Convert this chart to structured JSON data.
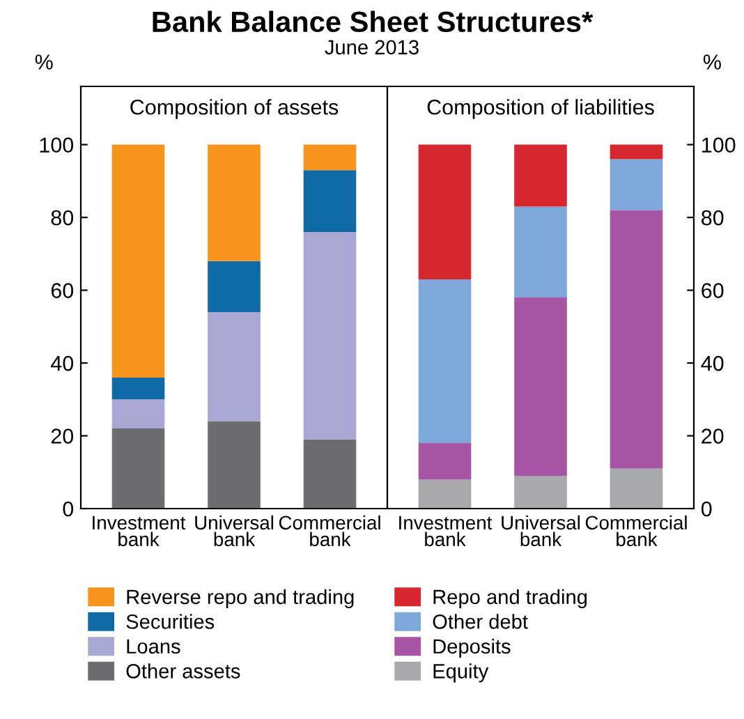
{
  "chart_data": [
    {
      "type": "bar",
      "title": "Bank Balance Sheet Structures*",
      "subtitle": "June 2013",
      "annotations": [
        "Composition of assets"
      ],
      "ylabel": "%",
      "stacked": true,
      "categories": [
        "Investment\nbank",
        "Universal\nbank",
        "Commercial\nbank"
      ],
      "ylim": [
        0,
        116
      ],
      "yticks": [
        0,
        20,
        40,
        60,
        80,
        100
      ],
      "grid": false,
      "legend": "bottom",
      "series": [
        {
          "name": "Other assets",
          "color": "#6b6d70",
          "values": [
            22,
            24,
            19
          ]
        },
        {
          "name": "Loans",
          "color": "#a9a8d4",
          "values": [
            8,
            30,
            57
          ]
        },
        {
          "name": "Securities",
          "color": "#0f6aa5",
          "values": [
            6,
            14,
            17
          ]
        },
        {
          "name": "Reverse repo and trading",
          "color": "#f7941d",
          "values": [
            64,
            32,
            7
          ]
        }
      ]
    },
    {
      "type": "bar",
      "annotations": [
        "Composition of liabilities"
      ],
      "ylabel": "%",
      "stacked": true,
      "categories": [
        "Investment\nbank",
        "Universal\nbank",
        "Commercial\nbank"
      ],
      "ylim": [
        0,
        116
      ],
      "yticks": [
        0,
        20,
        40,
        60,
        80,
        100
      ],
      "grid": false,
      "legend": "bottom",
      "series": [
        {
          "name": "Equity",
          "color": "#a7a9ac",
          "values": [
            8,
            9,
            11
          ]
        },
        {
          "name": "Deposits",
          "color": "#a855a6",
          "values": [
            10,
            49,
            71
          ]
        },
        {
          "name": "Other debt",
          "color": "#7fa8da",
          "values": [
            45,
            25,
            14
          ]
        },
        {
          "name": "Repo and trading",
          "color": "#d7282f",
          "values": [
            37,
            17,
            4
          ]
        }
      ]
    }
  ]
}
